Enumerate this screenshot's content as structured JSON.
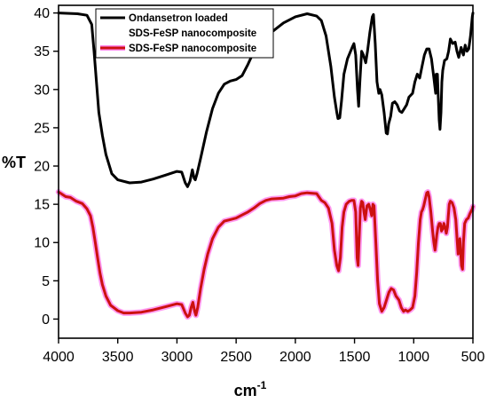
{
  "chart_data": {
    "type": "line",
    "title": "",
    "xlabel": "cm",
    "xlabel_superscript": "-1",
    "ylabel": "%T",
    "xlim": [
      4000,
      500
    ],
    "ylim": [
      -2.5,
      41
    ],
    "x_reversed": true,
    "grid": false,
    "legend_position": "top-left",
    "x_ticks": [
      4000,
      3500,
      3000,
      2500,
      2000,
      1500,
      1000,
      500
    ],
    "x_tick_labels": [
      "4000",
      "3500",
      "3000",
      "2500",
      "2000",
      "1500",
      "1000",
      "500"
    ],
    "y_ticks": [
      0,
      5,
      10,
      15,
      20,
      25,
      30,
      35,
      40
    ],
    "y_tick_labels": [
      "0",
      "5",
      "10",
      "15",
      "20",
      "25",
      "30",
      "35",
      "40"
    ],
    "series": [
      {
        "name": "Ondansetron loaded SDS-FeSP nanocomposite",
        "legend_lines": [
          "Ondansetron loaded",
          "SDS-FeSP nanocomposite"
        ],
        "color": "#000000",
        "points": [
          [
            4000,
            40
          ],
          [
            3840,
            39.9
          ],
          [
            3760,
            39.7
          ],
          [
            3720,
            38.5
          ],
          [
            3700,
            35
          ],
          [
            3680,
            31
          ],
          [
            3660,
            27
          ],
          [
            3630,
            24
          ],
          [
            3600,
            21.5
          ],
          [
            3550,
            19
          ],
          [
            3500,
            18.2
          ],
          [
            3400,
            17.8
          ],
          [
            3300,
            17.9
          ],
          [
            3200,
            18.3
          ],
          [
            3100,
            18.8
          ],
          [
            3000,
            19.3
          ],
          [
            2960,
            19.2
          ],
          [
            2930,
            17.8
          ],
          [
            2910,
            17.3
          ],
          [
            2890,
            18
          ],
          [
            2870,
            19.5
          ],
          [
            2855,
            18.4
          ],
          [
            2845,
            18.2
          ],
          [
            2830,
            19
          ],
          [
            2800,
            21
          ],
          [
            2750,
            24.5
          ],
          [
            2700,
            27.5
          ],
          [
            2650,
            29.5
          ],
          [
            2600,
            30.7
          ],
          [
            2550,
            31.1
          ],
          [
            2500,
            31.3
          ],
          [
            2450,
            31.8
          ],
          [
            2400,
            33.3
          ],
          [
            2350,
            35
          ],
          [
            2300,
            35.9
          ],
          [
            2250,
            36.8
          ],
          [
            2200,
            37.5
          ],
          [
            2100,
            38.7
          ],
          [
            2000,
            39.5
          ],
          [
            1900,
            39.9
          ],
          [
            1820,
            39.6
          ],
          [
            1780,
            39
          ],
          [
            1740,
            37
          ],
          [
            1700,
            33
          ],
          [
            1670,
            29
          ],
          [
            1650,
            27
          ],
          [
            1640,
            26.2
          ],
          [
            1625,
            26.3
          ],
          [
            1610,
            28.5
          ],
          [
            1590,
            32
          ],
          [
            1560,
            34
          ],
          [
            1520,
            35.5
          ],
          [
            1505,
            36
          ],
          [
            1490,
            34.5
          ],
          [
            1475,
            30
          ],
          [
            1465,
            27.8
          ],
          [
            1455,
            31
          ],
          [
            1440,
            35
          ],
          [
            1425,
            34.5
          ],
          [
            1405,
            33.5
          ],
          [
            1390,
            35
          ],
          [
            1370,
            37.5
          ],
          [
            1350,
            39.5
          ],
          [
            1340,
            39.8
          ],
          [
            1325,
            36
          ],
          [
            1310,
            31
          ],
          [
            1295,
            29.5
          ],
          [
            1285,
            30
          ],
          [
            1270,
            29.3
          ],
          [
            1250,
            27
          ],
          [
            1232,
            24.3
          ],
          [
            1222,
            24.2
          ],
          [
            1212,
            25.5
          ],
          [
            1195,
            26.5
          ],
          [
            1180,
            28.2
          ],
          [
            1160,
            28.4
          ],
          [
            1140,
            28
          ],
          [
            1120,
            27.2
          ],
          [
            1100,
            27
          ],
          [
            1080,
            27.5
          ],
          [
            1060,
            28
          ],
          [
            1040,
            29
          ],
          [
            1010,
            29.5
          ],
          [
            990,
            31
          ],
          [
            970,
            32
          ],
          [
            950,
            31.5
          ],
          [
            930,
            33
          ],
          [
            910,
            34.5
          ],
          [
            890,
            35.3
          ],
          [
            870,
            35.3
          ],
          [
            850,
            34
          ],
          [
            830,
            31.5
          ],
          [
            815,
            29.5
          ],
          [
            810,
            32
          ],
          [
            800,
            32
          ],
          [
            795,
            30
          ],
          [
            785,
            26
          ],
          [
            778,
            24.8
          ],
          [
            770,
            27
          ],
          [
            762,
            31
          ],
          [
            755,
            32.5
          ],
          [
            740,
            33.8
          ],
          [
            720,
            34
          ],
          [
            705,
            35
          ],
          [
            690,
            36.6
          ],
          [
            670,
            36
          ],
          [
            650,
            36.2
          ],
          [
            635,
            35
          ],
          [
            620,
            34.2
          ],
          [
            600,
            35.5
          ],
          [
            580,
            34.5
          ],
          [
            565,
            35.8
          ],
          [
            550,
            35
          ],
          [
            535,
            35.3
          ],
          [
            520,
            37
          ],
          [
            505,
            39.5
          ],
          [
            500,
            40
          ]
        ]
      },
      {
        "name": "SDS-FeSP nanocomposite",
        "legend_lines": [
          "SDS-FeSP nanocomposite"
        ],
        "color": "#cc1010",
        "halo_color": "#ff88ee",
        "points": [
          [
            4000,
            16.6
          ],
          [
            3940,
            16
          ],
          [
            3900,
            15.9
          ],
          [
            3850,
            15.4
          ],
          [
            3800,
            15.1
          ],
          [
            3760,
            14.4
          ],
          [
            3730,
            13.5
          ],
          [
            3710,
            12
          ],
          [
            3690,
            10
          ],
          [
            3670,
            8
          ],
          [
            3650,
            6
          ],
          [
            3630,
            4.5
          ],
          [
            3600,
            3
          ],
          [
            3560,
            1.8
          ],
          [
            3500,
            1.1
          ],
          [
            3450,
            0.8
          ],
          [
            3400,
            0.8
          ],
          [
            3300,
            0.9
          ],
          [
            3200,
            1.2
          ],
          [
            3100,
            1.6
          ],
          [
            3000,
            2
          ],
          [
            2960,
            1.9
          ],
          [
            2930,
            0.8
          ],
          [
            2910,
            0.3
          ],
          [
            2895,
            0.5
          ],
          [
            2880,
            1.5
          ],
          [
            2865,
            2.2
          ],
          [
            2850,
            1
          ],
          [
            2840,
            0.5
          ],
          [
            2825,
            1.5
          ],
          [
            2800,
            4
          ],
          [
            2770,
            6.5
          ],
          [
            2740,
            8.5
          ],
          [
            2700,
            10.5
          ],
          [
            2650,
            12
          ],
          [
            2600,
            12.8
          ],
          [
            2550,
            13
          ],
          [
            2500,
            13.2
          ],
          [
            2450,
            13.6
          ],
          [
            2400,
            14
          ],
          [
            2350,
            14.5
          ],
          [
            2300,
            15.1
          ],
          [
            2250,
            15.5
          ],
          [
            2200,
            15.7
          ],
          [
            2100,
            15.8
          ],
          [
            2050,
            16
          ],
          [
            2000,
            16.1
          ],
          [
            1950,
            16.4
          ],
          [
            1900,
            16.5
          ],
          [
            1820,
            16.4
          ],
          [
            1780,
            15.5
          ],
          [
            1750,
            15.2
          ],
          [
            1720,
            14.5
          ],
          [
            1690,
            12.5
          ],
          [
            1670,
            9
          ],
          [
            1650,
            7
          ],
          [
            1635,
            6.3
          ],
          [
            1620,
            8
          ],
          [
            1605,
            12
          ],
          [
            1590,
            14
          ],
          [
            1570,
            15
          ],
          [
            1545,
            15.4
          ],
          [
            1525,
            15.5
          ],
          [
            1505,
            15.5
          ],
          [
            1490,
            14
          ],
          [
            1478,
            8
          ],
          [
            1470,
            7
          ],
          [
            1462,
            10
          ],
          [
            1450,
            14.5
          ],
          [
            1440,
            15.4
          ],
          [
            1430,
            15.2
          ],
          [
            1420,
            14
          ],
          [
            1410,
            13
          ],
          [
            1395,
            14.8
          ],
          [
            1380,
            15
          ],
          [
            1365,
            14.2
          ],
          [
            1355,
            13.5
          ],
          [
            1345,
            15
          ],
          [
            1335,
            14.8
          ],
          [
            1320,
            10
          ],
          [
            1305,
            5
          ],
          [
            1290,
            2
          ],
          [
            1270,
            1
          ],
          [
            1250,
            1.5
          ],
          [
            1230,
            2.5
          ],
          [
            1210,
            3.5
          ],
          [
            1190,
            4
          ],
          [
            1170,
            3.8
          ],
          [
            1150,
            3
          ],
          [
            1125,
            2.5
          ],
          [
            1105,
            1.5
          ],
          [
            1085,
            1
          ],
          [
            1070,
            1.2
          ],
          [
            1050,
            1
          ],
          [
            1030,
            1.2
          ],
          [
            1010,
            1.5
          ],
          [
            990,
            3
          ],
          [
            975,
            6
          ],
          [
            960,
            10
          ],
          [
            945,
            13
          ],
          [
            935,
            14
          ],
          [
            925,
            14.3
          ],
          [
            915,
            14.8
          ],
          [
            905,
            15.5
          ],
          [
            890,
            16.5
          ],
          [
            880,
            16.6
          ],
          [
            870,
            16
          ],
          [
            855,
            14
          ],
          [
            840,
            11.5
          ],
          [
            830,
            10
          ],
          [
            820,
            9
          ],
          [
            805,
            11
          ],
          [
            795,
            12
          ],
          [
            785,
            12.5
          ],
          [
            775,
            12.5
          ],
          [
            765,
            11.5
          ],
          [
            755,
            11.8
          ],
          [
            745,
            12.5
          ],
          [
            735,
            12
          ],
          [
            725,
            11.2
          ],
          [
            715,
            12
          ],
          [
            700,
            15
          ],
          [
            690,
            15.4
          ],
          [
            675,
            15.2
          ],
          [
            660,
            14.5
          ],
          [
            645,
            13
          ],
          [
            632,
            10
          ],
          [
            625,
            8.5
          ],
          [
            618,
            9
          ],
          [
            610,
            10.5
          ],
          [
            603,
            8.5
          ],
          [
            597,
            7
          ],
          [
            588,
            6.5
          ],
          [
            580,
            10
          ],
          [
            570,
            12.5
          ],
          [
            555,
            13
          ],
          [
            540,
            13.2
          ],
          [
            525,
            13.8
          ],
          [
            515,
            14.1
          ],
          [
            505,
            14.4
          ],
          [
            500,
            14.7
          ]
        ]
      }
    ]
  }
}
